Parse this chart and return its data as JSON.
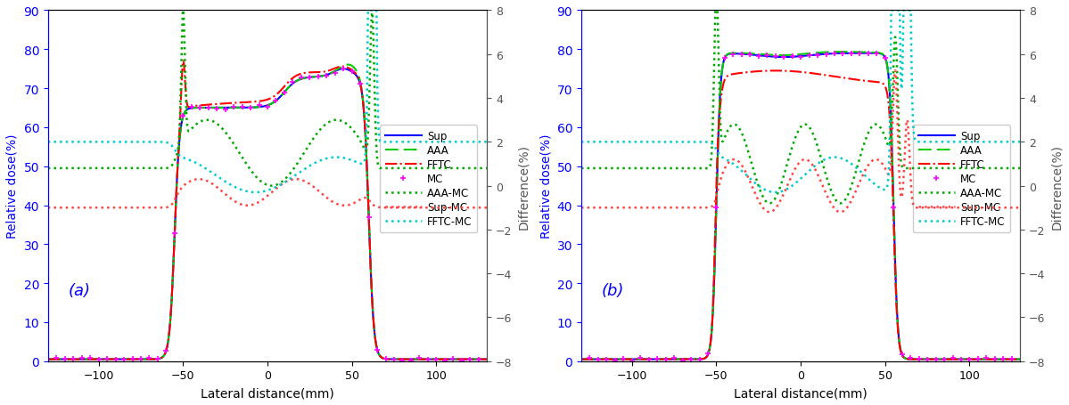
{
  "xlim": [
    -130,
    130
  ],
  "ylim_left": [
    0,
    90
  ],
  "ylim_right": [
    -8,
    8
  ],
  "yticks_left": [
    0,
    10,
    20,
    30,
    40,
    50,
    60,
    70,
    80,
    90
  ],
  "yticks_right": [
    -8,
    -6,
    -4,
    -2,
    0,
    2,
    4,
    6,
    8
  ],
  "xticks": [
    -100,
    -50,
    0,
    50,
    100
  ],
  "xlabel": "Lateral distance(mm)",
  "ylabel_left": "Relative dose(%)",
  "ylabel_right": "Difference(%)",
  "label_a": "(a)",
  "label_b": "(b)",
  "colors": {
    "Sup": "#0000FF",
    "AAA": "#00CC00",
    "FFTC": "#FF0000",
    "MC": "#FF00FF",
    "AAA-MC": "#00AA00",
    "Sup-MC": "#FF4444",
    "FFTC-MC": "#00CCCC"
  },
  "background_color": "#FFFFFF",
  "axis_color": "#0000FF"
}
